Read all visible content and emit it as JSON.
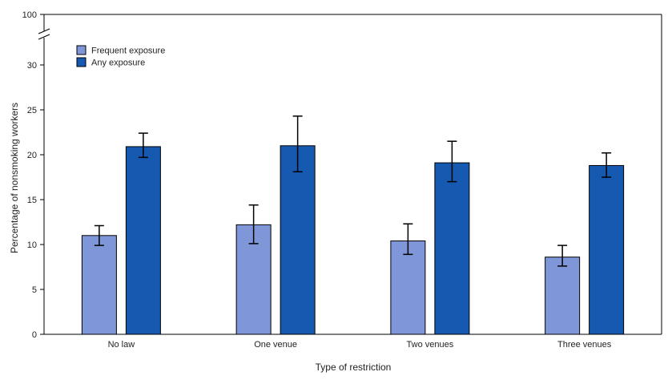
{
  "chart_data": {
    "type": "bar",
    "categories": [
      "No law",
      "One venue",
      "Two venues",
      "Three venues"
    ],
    "series": [
      {
        "name": "Frequent exposure",
        "color": "#7f96d8",
        "values": [
          11.0,
          12.2,
          10.4,
          8.6
        ],
        "error_low": [
          9.9,
          10.1,
          8.9,
          7.6
        ],
        "error_high": [
          12.1,
          14.4,
          12.3,
          9.9
        ]
      },
      {
        "name": "Any exposure",
        "color": "#1659b1",
        "values": [
          20.9,
          21.0,
          19.1,
          18.8
        ],
        "error_low": [
          19.7,
          18.1,
          17.0,
          17.5
        ],
        "error_high": [
          22.4,
          24.3,
          21.5,
          20.2
        ]
      }
    ],
    "xlabel": "Type of restriction",
    "ylabel": "Percentage of nonsmoking workers",
    "ylim": [
      0,
      30
    ],
    "yticks": [
      0,
      5,
      10,
      15,
      20,
      25,
      30
    ],
    "axis_break_label": "100",
    "grid": false,
    "legend_position": "top-left"
  }
}
